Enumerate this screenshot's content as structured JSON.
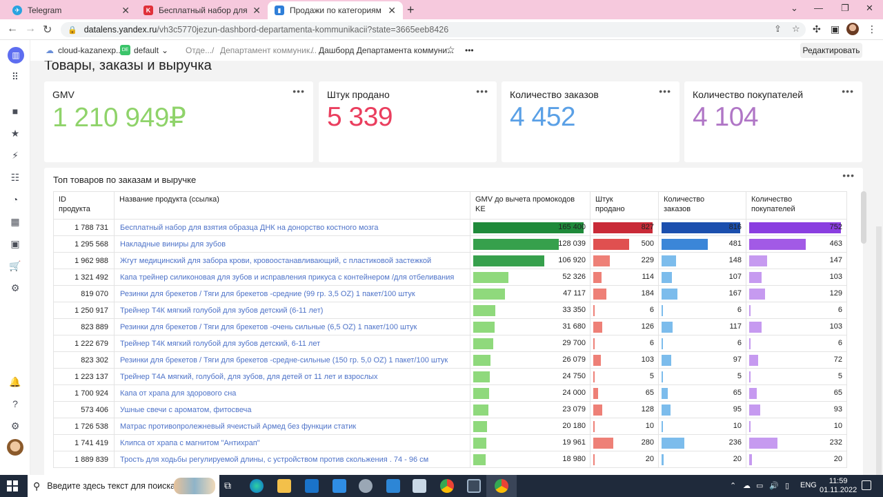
{
  "browser": {
    "tabs": [
      {
        "title": "Telegram",
        "favicon": "telegram-icon",
        "color": "#2aa3e0",
        "active": false
      },
      {
        "title": "Бесплатный набор для взятия о",
        "favicon": "kazanexpress-icon",
        "color": "#e0303a",
        "active": false
      },
      {
        "title": "Продажи по категориям - Даш",
        "favicon": "datalens-icon",
        "color": "#2f7fd8",
        "active": true
      }
    ],
    "url_domain": "datalens.yandex.ru",
    "url_path": "/vh3c5770jezun-dashbord-departamenta-kommunikacii?state=3665eeb8426"
  },
  "datalens": {
    "org": "cloud-kazanexp...",
    "workspace_badge": "DE",
    "workspace": "default",
    "breadcrumbs": [
      "Отде...",
      "Департамент коммуник...",
      "Дашборд Департамента коммуни..."
    ],
    "edit_label": "Редактировать"
  },
  "page": {
    "title": "Товары, заказы и выручка"
  },
  "kpis": [
    {
      "label": "GMV",
      "value": "1 210 949₽",
      "color": "#8fd36a"
    },
    {
      "label": "Штук продано",
      "value": "5 339",
      "color": "#ea3e5e"
    },
    {
      "label": "Количество заказов",
      "value": "4 452",
      "color": "#5aa0e6"
    },
    {
      "label": "Количество покупателей",
      "value": "4 104",
      "color": "#b076c6"
    }
  ],
  "table": {
    "title": "Топ товаров по заказам и выручке",
    "columns": {
      "id": "ID\nпродукта",
      "name": "Название продукта (ссылка)",
      "gmv": "GMV до вычета промокодов\nKE",
      "units": "Штук\nпродано",
      "orders": "Количество\nзаказов",
      "buyers": "Количество\nпокупателей"
    },
    "max": {
      "gmv": 165400,
      "units": 827,
      "orders": 816,
      "buyers": 752
    },
    "rows": [
      {
        "id": "1 788 731",
        "name": "Бесплатный набор для взятия образца ДНК на донорство костного мозга",
        "gmv": 165400,
        "units": 827,
        "orders": 816,
        "buyers": 752
      },
      {
        "id": "1 295 568",
        "name": "Накладные виниры для зубов",
        "gmv": 128039,
        "units": 500,
        "orders": 481,
        "buyers": 463
      },
      {
        "id": "1 962 988",
        "name": "Жгут медицинский для забора крови, кровоостанавливающий, с пластиковой застежкой",
        "gmv": 106920,
        "units": 229,
        "orders": 148,
        "buyers": 147
      },
      {
        "id": "1 321 492",
        "name": "Капа трейнер силиконовая для зубов и исправления прикуса с контейнером /для отбеливания",
        "gmv": 52326,
        "units": 114,
        "orders": 107,
        "buyers": 103
      },
      {
        "id": "819 070",
        "name": "Резинки для брекетов / Тяги для брекетов -средние (99 гр. 3,5 OZ) 1 пакет/100 штук",
        "gmv": 47117,
        "units": 184,
        "orders": 167,
        "buyers": 129
      },
      {
        "id": "1 250 917",
        "name": "Трейнер Т4К мягкий голубой для зубов детский (6-11 лет)",
        "gmv": 33350,
        "units": 6,
        "orders": 6,
        "buyers": 6
      },
      {
        "id": "823 889",
        "name": "Резинки для брекетов / Тяги для брекетов -очень сильные (6,5 OZ) 1 пакет/100 штук",
        "gmv": 31680,
        "units": 126,
        "orders": 117,
        "buyers": 103
      },
      {
        "id": "1 222 679",
        "name": "Трейнер Т4К мягкий голубой для зубов детский, 6-11 лет",
        "gmv": 29700,
        "units": 6,
        "orders": 6,
        "buyers": 6
      },
      {
        "id": "823 302",
        "name": "Резинки для брекетов / Тяги для брекетов -средне-сильные (150 гр. 5,0 OZ) 1 пакет/100 штук",
        "gmv": 26079,
        "units": 103,
        "orders": 97,
        "buyers": 72
      },
      {
        "id": "1 223 137",
        "name": "Трейнер Т4А мягкий, голубой, для зубов, для детей от 11 лет и взрослых",
        "gmv": 24750,
        "units": 5,
        "orders": 5,
        "buyers": 5
      },
      {
        "id": "1 700 924",
        "name": "Капа от храпа для здорового сна",
        "gmv": 24000,
        "units": 65,
        "orders": 65,
        "buyers": 65
      },
      {
        "id": "573 406",
        "name": "Ушные свечи с ароматом, фитосвеча",
        "gmv": 23079,
        "units": 128,
        "orders": 95,
        "buyers": 93
      },
      {
        "id": "1 726 538",
        "name": "Матрас противопролежневый ячеистый Армед без функции статик",
        "gmv": 20180,
        "units": 10,
        "orders": 10,
        "buyers": 10
      },
      {
        "id": "1 741 419",
        "name": "Клипса от храпа с магнитом \"Антихрап\"",
        "gmv": 19961,
        "units": 280,
        "orders": 236,
        "buyers": 232
      },
      {
        "id": "1 889 839",
        "name": "Трость для ходьбы регулируемой длины, с устройством против скольжения . 74 - 96 см",
        "gmv": 18980,
        "units": 20,
        "orders": 20,
        "buyers": 20
      }
    ]
  },
  "taskbar": {
    "search_placeholder": "Введите здесь текст для поиска",
    "lang": "ENG",
    "time": "11:59",
    "date": "01.11.2022"
  }
}
